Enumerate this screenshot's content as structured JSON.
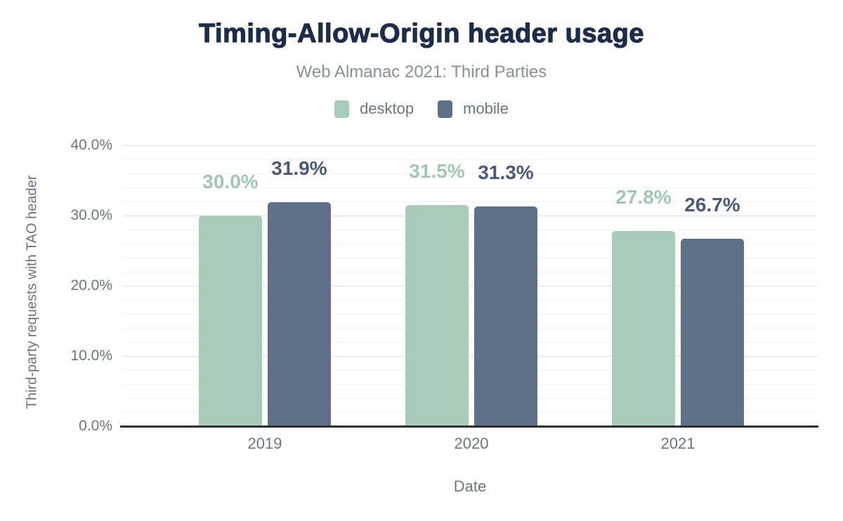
{
  "chart": {
    "title": "Timing-Allow-Origin header usage",
    "subtitle": "Web Almanac 2021: Third Parties"
  },
  "colors": {
    "title": "#1d2c4c",
    "subtitle": "#8a9099",
    "axis_text": "#6e747e",
    "baseline": "#2e2e2e"
  },
  "chart_data": {
    "type": "bar",
    "title": "Timing-Allow-Origin header usage",
    "subtitle": "Web Almanac 2021: Third Parties",
    "xlabel": "Date",
    "ylabel": "Third-party requests with TAO header",
    "categories": [
      "2019",
      "2020",
      "2021"
    ],
    "series": [
      {
        "name": "desktop",
        "color": "#a9cbba",
        "label_color": "#a2c8b5",
        "values": [
          30.0,
          31.5,
          27.8
        ],
        "data_labels": [
          "30.0%",
          "31.5%",
          "27.8%"
        ]
      },
      {
        "name": "mobile",
        "color": "#5f7189",
        "label_color": "#4c5a7a",
        "values": [
          31.9,
          31.3,
          26.7
        ],
        "data_labels": [
          "31.9%",
          "31.3%",
          "26.7%"
        ]
      }
    ],
    "y_axis": {
      "ticks": [
        0,
        10,
        20,
        30,
        40
      ],
      "tick_labels": [
        "0.0%",
        "10.0%",
        "20.0%",
        "30.0%",
        "40.0%"
      ],
      "max": 40,
      "minor_step": 2,
      "major_step": 10
    },
    "ylim": [
      0,
      40
    ],
    "grid": "minor horizontal lines every 2%, major every 10%",
    "legend_position": "top-center"
  }
}
